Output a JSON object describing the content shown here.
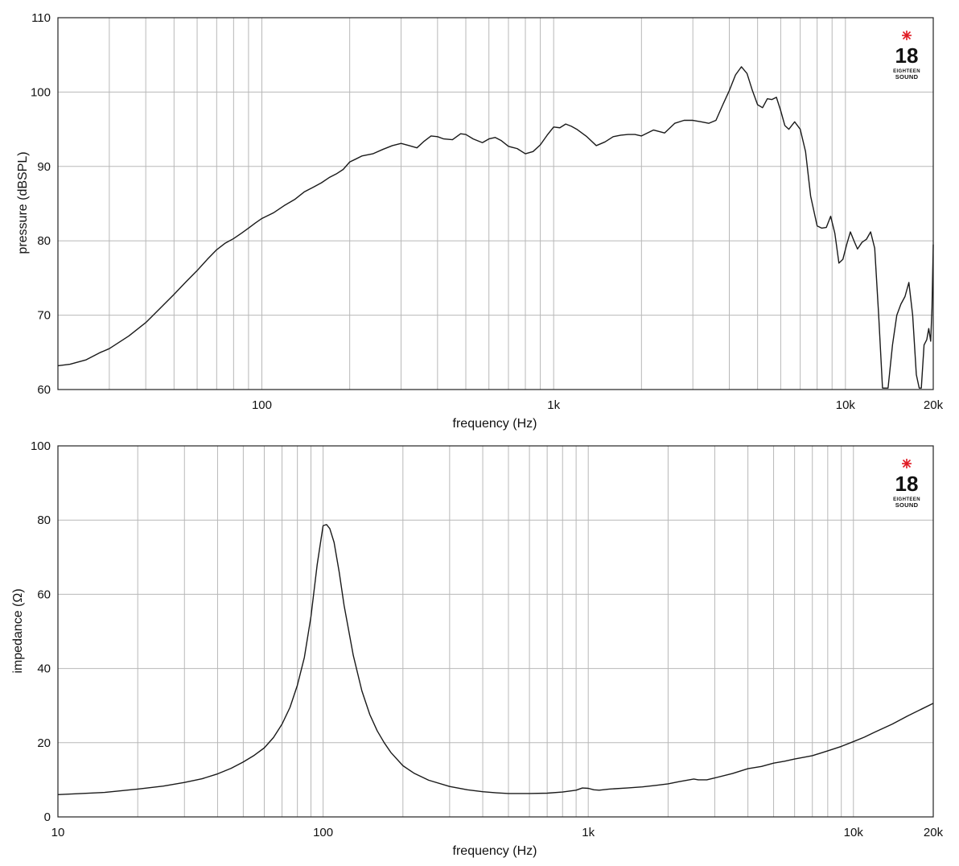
{
  "logo": {
    "number": "18",
    "line1": "EIGHTEEN",
    "line2": "SOUND",
    "accent_color": "#e01b24"
  },
  "chart_data": [
    {
      "type": "line",
      "xlabel": "frequency (Hz)",
      "ylabel": "pressure (dBSPL)",
      "x_scale": "log",
      "xlim": [
        20,
        20000
      ],
      "ylim": [
        60,
        110
      ],
      "yticks": [
        60,
        70,
        80,
        90,
        100,
        110
      ],
      "xtick_labels": [
        {
          "value": 100,
          "label": "100"
        },
        {
          "value": 1000,
          "label": "1k"
        },
        {
          "value": 10000,
          "label": "10k"
        },
        {
          "value": 20000,
          "label": "20k"
        }
      ],
      "grid": true,
      "line_color": "#1a1a1a",
      "series": [
        {
          "points": [
            [
              20,
              63.2
            ],
            [
              22,
              63.4
            ],
            [
              25,
              64
            ],
            [
              28,
              65
            ],
            [
              30,
              65.5
            ],
            [
              35,
              67.2
            ],
            [
              40,
              69
            ],
            [
              45,
              71
            ],
            [
              50,
              72.8
            ],
            [
              55,
              74.5
            ],
            [
              60,
              76
            ],
            [
              65,
              77.5
            ],
            [
              70,
              78.8
            ],
            [
              75,
              79.7
            ],
            [
              80,
              80.3
            ],
            [
              85,
              81
            ],
            [
              90,
              81.7
            ],
            [
              95,
              82.4
            ],
            [
              100,
              83
            ],
            [
              110,
              83.8
            ],
            [
              120,
              84.8
            ],
            [
              130,
              85.6
            ],
            [
              140,
              86.6
            ],
            [
              150,
              87.2
            ],
            [
              160,
              87.8
            ],
            [
              170,
              88.5
            ],
            [
              180,
              89
            ],
            [
              190,
              89.6
            ],
            [
              200,
              90.6
            ],
            [
              210,
              91
            ],
            [
              220,
              91.4
            ],
            [
              240,
              91.7
            ],
            [
              260,
              92.3
            ],
            [
              280,
              92.8
            ],
            [
              300,
              93.1
            ],
            [
              320,
              92.8
            ],
            [
              340,
              92.5
            ],
            [
              360,
              93.4
            ],
            [
              380,
              94.1
            ],
            [
              400,
              94
            ],
            [
              420,
              93.7
            ],
            [
              450,
              93.6
            ],
            [
              480,
              94.4
            ],
            [
              500,
              94.3
            ],
            [
              530,
              93.7
            ],
            [
              570,
              93.2
            ],
            [
              600,
              93.7
            ],
            [
              630,
              93.9
            ],
            [
              660,
              93.5
            ],
            [
              700,
              92.7
            ],
            [
              750,
              92.4
            ],
            [
              800,
              91.7
            ],
            [
              850,
              92
            ],
            [
              900,
              92.9
            ],
            [
              950,
              94.2
            ],
            [
              1000,
              95.3
            ],
            [
              1050,
              95.2
            ],
            [
              1100,
              95.7
            ],
            [
              1150,
              95.4
            ],
            [
              1200,
              95
            ],
            [
              1300,
              94
            ],
            [
              1400,
              92.8
            ],
            [
              1500,
              93.3
            ],
            [
              1600,
              94
            ],
            [
              1700,
              94.2
            ],
            [
              1800,
              94.3
            ],
            [
              1900,
              94.3
            ],
            [
              2000,
              94.1
            ],
            [
              2200,
              94.9
            ],
            [
              2400,
              94.5
            ],
            [
              2600,
              95.8
            ],
            [
              2800,
              96.2
            ],
            [
              3000,
              96.2
            ],
            [
              3200,
              96
            ],
            [
              3400,
              95.8
            ],
            [
              3600,
              96.2
            ],
            [
              3800,
              98.3
            ],
            [
              4000,
              100.2
            ],
            [
              4200,
              102.3
            ],
            [
              4400,
              103.4
            ],
            [
              4600,
              102.5
            ],
            [
              4800,
              100.2
            ],
            [
              5000,
              98.3
            ],
            [
              5200,
              97.9
            ],
            [
              5400,
              99.1
            ],
            [
              5600,
              99
            ],
            [
              5800,
              99.3
            ],
            [
              6000,
              97.5
            ],
            [
              6200,
              95.5
            ],
            [
              6400,
              95
            ],
            [
              6700,
              96
            ],
            [
              7000,
              95
            ],
            [
              7300,
              92
            ],
            [
              7600,
              86
            ],
            [
              8000,
              82
            ],
            [
              8300,
              81.7
            ],
            [
              8600,
              81.8
            ],
            [
              8900,
              83.3
            ],
            [
              9200,
              81
            ],
            [
              9500,
              77
            ],
            [
              9800,
              77.5
            ],
            [
              10100,
              79.5
            ],
            [
              10400,
              81.2
            ],
            [
              10700,
              80
            ],
            [
              11000,
              78.9
            ],
            [
              11400,
              79.8
            ],
            [
              11800,
              80.2
            ],
            [
              12200,
              81.2
            ],
            [
              12600,
              79
            ],
            [
              13000,
              70
            ],
            [
              13400,
              60.2
            ],
            [
              14000,
              60.2
            ],
            [
              14500,
              66
            ],
            [
              15000,
              70
            ],
            [
              15500,
              71.5
            ],
            [
              16000,
              72.5
            ],
            [
              16500,
              74.4
            ],
            [
              17000,
              70
            ],
            [
              17500,
              62
            ],
            [
              17900,
              60.2
            ],
            [
              18200,
              60.2
            ],
            [
              18600,
              66
            ],
            [
              19000,
              66.7
            ],
            [
              19300,
              68.2
            ],
            [
              19600,
              66.5
            ],
            [
              19800,
              71
            ],
            [
              20000,
              79.5
            ]
          ]
        }
      ]
    },
    {
      "type": "line",
      "xlabel": "frequency (Hz)",
      "ylabel": "impedance (Ω)",
      "x_scale": "log",
      "xlim": [
        10,
        20000
      ],
      "ylim": [
        0,
        100
      ],
      "yticks": [
        0,
        20,
        40,
        60,
        80,
        100
      ],
      "xtick_labels": [
        {
          "value": 10,
          "label": "10"
        },
        {
          "value": 100,
          "label": "100"
        },
        {
          "value": 1000,
          "label": "1k"
        },
        {
          "value": 10000,
          "label": "10k"
        },
        {
          "value": 20000,
          "label": "20k"
        }
      ],
      "grid": true,
      "line_color": "#1a1a1a",
      "series": [
        {
          "points": [
            [
              10,
              6
            ],
            [
              15,
              6.6
            ],
            [
              20,
              7.5
            ],
            [
              25,
              8.3
            ],
            [
              30,
              9.3
            ],
            [
              35,
              10.3
            ],
            [
              40,
              11.6
            ],
            [
              45,
              13.1
            ],
            [
              50,
              14.8
            ],
            [
              55,
              16.6
            ],
            [
              60,
              18.6
            ],
            [
              65,
              21.4
            ],
            [
              70,
              25
            ],
            [
              75,
              29.5
            ],
            [
              80,
              35.5
            ],
            [
              85,
              43
            ],
            [
              90,
              54
            ],
            [
              95,
              68
            ],
            [
              100,
              78.5
            ],
            [
              103,
              78.8
            ],
            [
              106,
              77.7
            ],
            [
              110,
              74
            ],
            [
              115,
              66
            ],
            [
              120,
              57
            ],
            [
              130,
              43.5
            ],
            [
              140,
              34
            ],
            [
              150,
              27.6
            ],
            [
              160,
              23.2
            ],
            [
              170,
              20
            ],
            [
              180,
              17.4
            ],
            [
              200,
              13.8
            ],
            [
              220,
              11.8
            ],
            [
              250,
              9.9
            ],
            [
              300,
              8.2
            ],
            [
              350,
              7.3
            ],
            [
              400,
              6.8
            ],
            [
              450,
              6.5
            ],
            [
              500,
              6.3
            ],
            [
              600,
              6.3
            ],
            [
              700,
              6.4
            ],
            [
              800,
              6.7
            ],
            [
              900,
              7.2
            ],
            [
              950,
              7.8
            ],
            [
              1000,
              7.7
            ],
            [
              1050,
              7.3
            ],
            [
              1100,
              7.2
            ],
            [
              1200,
              7.5
            ],
            [
              1400,
              7.8
            ],
            [
              1600,
              8.1
            ],
            [
              1800,
              8.5
            ],
            [
              2000,
              8.9
            ],
            [
              2200,
              9.5
            ],
            [
              2500,
              10.2
            ],
            [
              2600,
              10
            ],
            [
              2800,
              10
            ],
            [
              3000,
              10.5
            ],
            [
              3500,
              11.7
            ],
            [
              4000,
              13
            ],
            [
              4500,
              13.6
            ],
            [
              5000,
              14.5
            ],
            [
              5500,
              15
            ],
            [
              6000,
              15.6
            ],
            [
              7000,
              16.5
            ],
            [
              8000,
              17.8
            ],
            [
              9000,
              19
            ],
            [
              10000,
              20.3
            ],
            [
              11000,
              21.5
            ],
            [
              12000,
              22.8
            ],
            [
              14000,
              25
            ],
            [
              16000,
              27.2
            ],
            [
              18000,
              29
            ],
            [
              20000,
              30.6
            ]
          ]
        }
      ]
    }
  ]
}
